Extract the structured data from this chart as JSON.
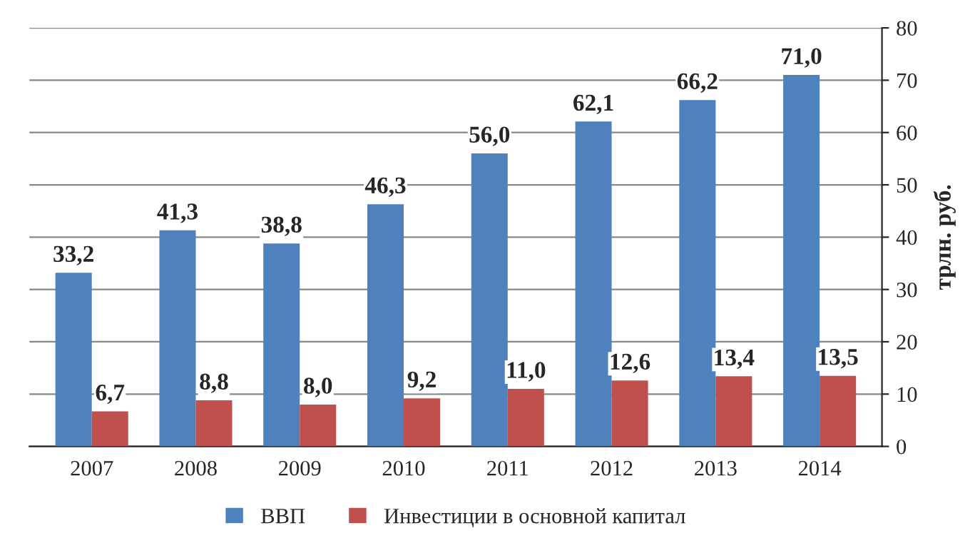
{
  "chart_data": {
    "type": "bar",
    "categories": [
      "2007",
      "2008",
      "2009",
      "2010",
      "2011",
      "2012",
      "2013",
      "2014"
    ],
    "series": [
      {
        "name": "ВВП",
        "color": "#4f81bd",
        "values": [
          33.2,
          41.3,
          38.8,
          46.3,
          56.0,
          62.1,
          66.2,
          71.0
        ],
        "value_labels": [
          "33,2",
          "41,3",
          "38,8",
          "46,3",
          "56,0",
          "62,1",
          "66,2",
          "71,0"
        ]
      },
      {
        "name": "Инвестиции в основной капитал",
        "color": "#c0504d",
        "values": [
          6.7,
          8.8,
          8.0,
          9.2,
          11.0,
          12.6,
          13.4,
          13.5
        ],
        "value_labels": [
          "6,7",
          "8,8",
          "8,0",
          "9,2",
          "11,0",
          "12,6",
          "13,4",
          "13,5"
        ]
      }
    ],
    "y2label": "трлн. руб.",
    "ylim": [
      0,
      80
    ],
    "yticks": [
      0,
      10,
      20,
      30,
      40,
      50,
      60,
      70,
      80
    ],
    "grid": "y",
    "legend": "bottom"
  }
}
